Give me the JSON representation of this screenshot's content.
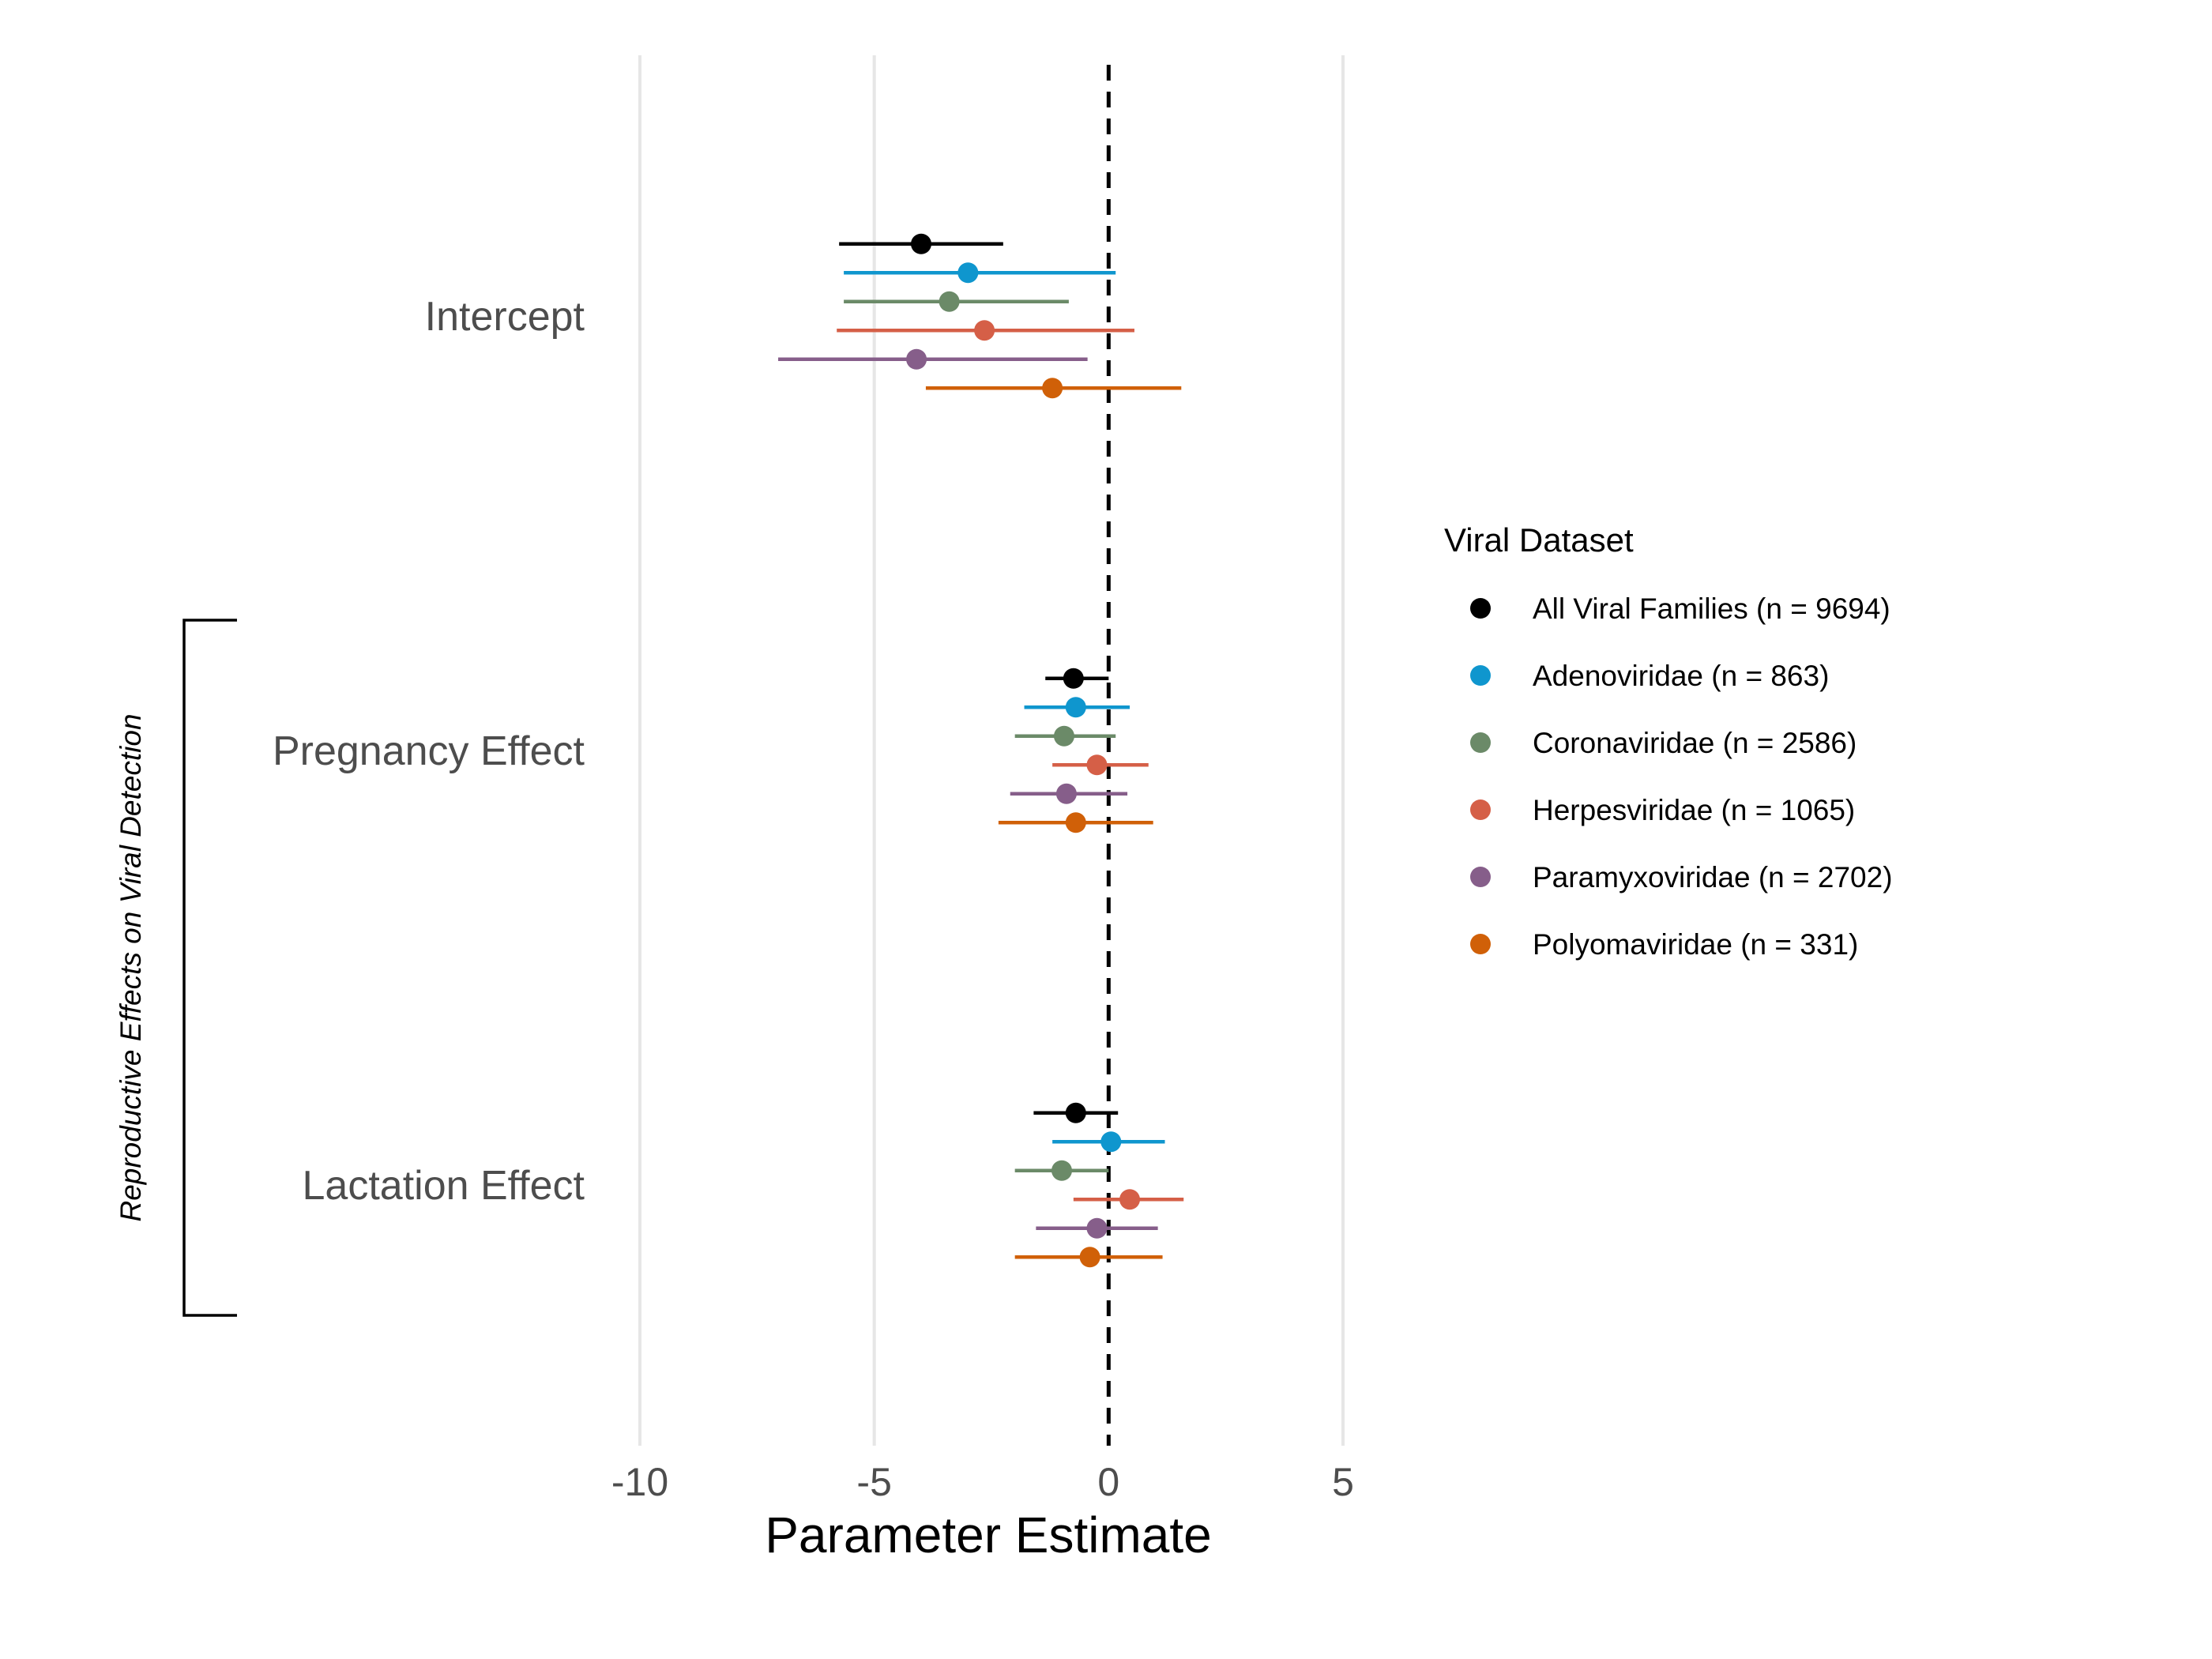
{
  "chart_data": {
    "type": "scatter",
    "subtype": "forest-plot",
    "xlabel": "Parameter Estimate",
    "xlim": [
      -10.5,
      7
    ],
    "x_ticks": [
      -10,
      -5,
      0,
      5
    ],
    "x_tick_labels": [
      "-10",
      "-5",
      "0",
      "5"
    ],
    "reference_line": 0,
    "grid": "vertical-major",
    "categories": [
      "Intercept",
      "Pregnancy Effect",
      "Lactation Effect"
    ],
    "bracket_label": "Reproductive Effects on Viral Detection",
    "legend": {
      "title": "Viral Dataset",
      "placement": "right"
    },
    "series": [
      {
        "name": "All Viral Families (n = 9694)",
        "color": "#000000",
        "estimates": [
          -4.0,
          -0.75,
          -0.7
        ],
        "lower": [
          -5.75,
          -1.35,
          -1.6
        ],
        "upper": [
          -2.25,
          0.0,
          0.2
        ]
      },
      {
        "name": "Adenoviridae (n = 863)",
        "color": "#0f96ce",
        "estimates": [
          -3.0,
          -0.7,
          0.05
        ],
        "lower": [
          -5.65,
          -1.8,
          -1.2
        ],
        "upper": [
          0.15,
          0.45,
          1.2
        ]
      },
      {
        "name": "Coronaviridae (n = 2586)",
        "color": "#6b8a68",
        "estimates": [
          -3.4,
          -0.95,
          -1.0
        ],
        "lower": [
          -5.65,
          -2.0,
          -2.0
        ],
        "upper": [
          -0.85,
          0.15,
          0.0
        ]
      },
      {
        "name": "Herpesviridae (n = 1065)",
        "color": "#d55f47",
        "estimates": [
          -2.65,
          -0.25,
          0.45
        ],
        "lower": [
          -5.8,
          -1.2,
          -0.75
        ],
        "upper": [
          0.55,
          0.85,
          1.6
        ]
      },
      {
        "name": "Paramyxoviridae (n = 2702)",
        "color": "#865e8a",
        "estimates": [
          -4.1,
          -0.9,
          -0.25
        ],
        "lower": [
          -7.05,
          -2.1,
          -1.55
        ],
        "upper": [
          -0.45,
          0.4,
          1.05
        ]
      },
      {
        "name": "Polyomaviridae (n = 331)",
        "color": "#d06008",
        "estimates": [
          -1.2,
          -0.7,
          -0.4
        ],
        "lower": [
          -3.9,
          -2.35,
          -2.0
        ],
        "upper": [
          1.55,
          0.95,
          1.15
        ]
      }
    ]
  }
}
